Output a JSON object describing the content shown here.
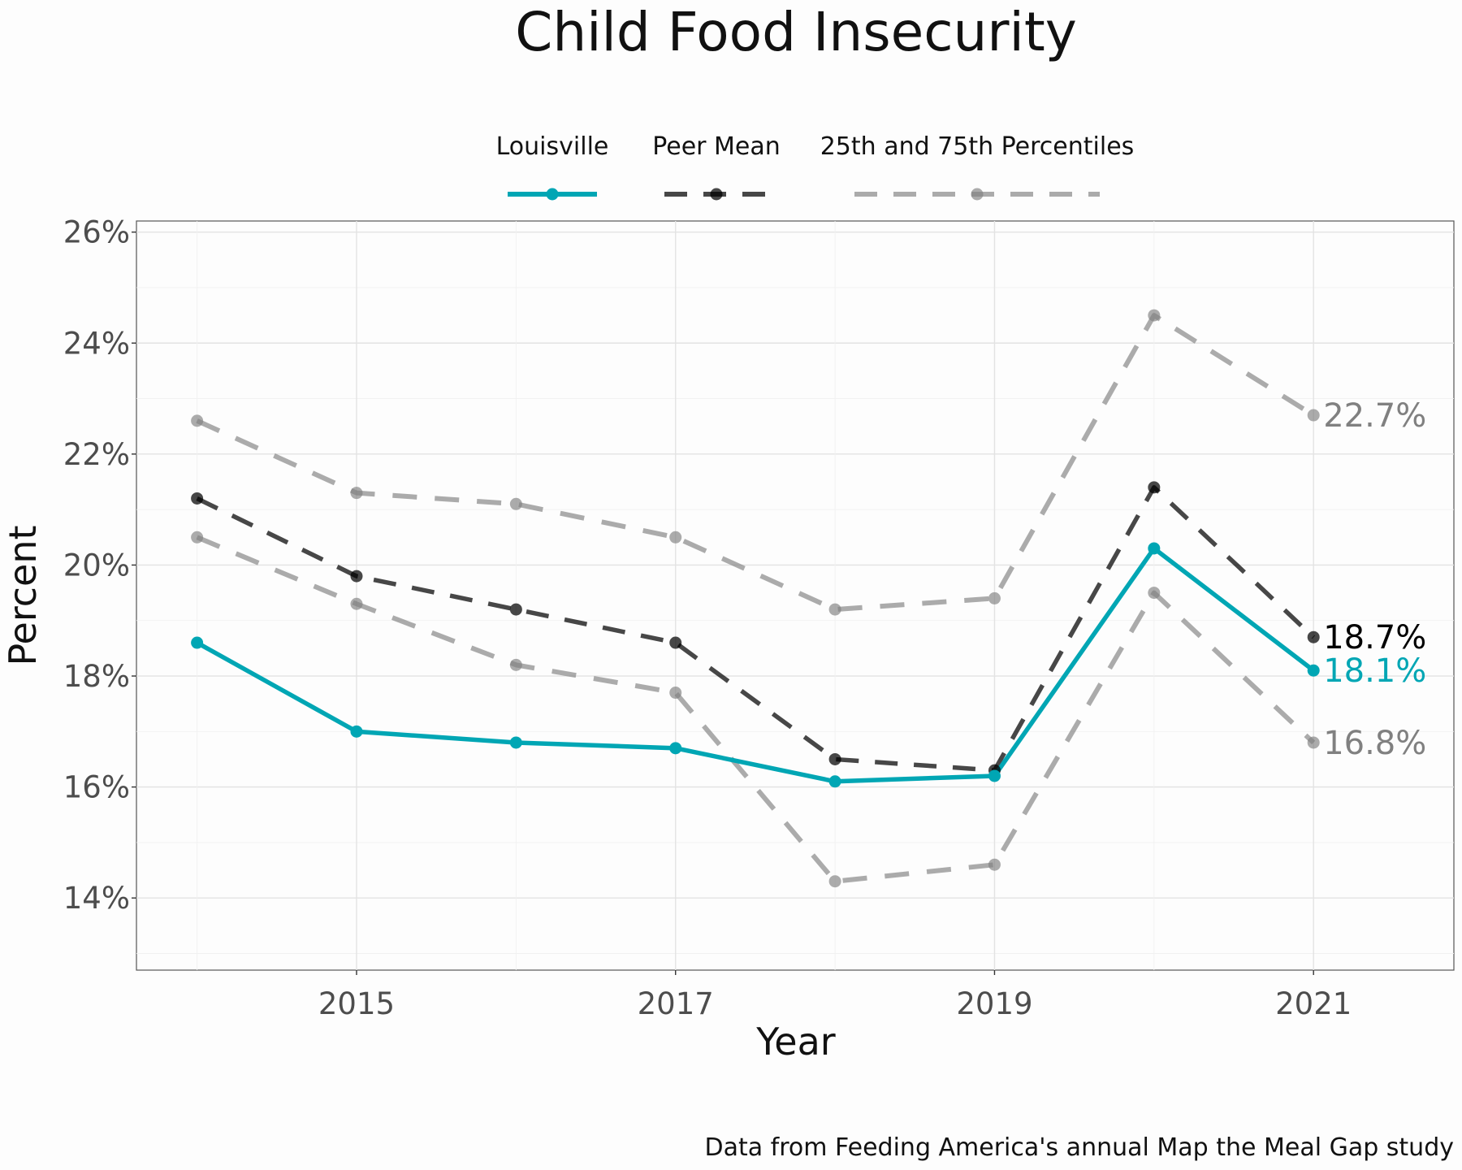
{
  "chart_data": {
    "type": "line",
    "title": "Child Food Insecurity",
    "xlabel": "Year",
    "ylabel": "Percent",
    "caption": "Data from Feeding America's annual Map the Meal Gap study",
    "x": [
      2014,
      2015,
      2016,
      2017,
      2018,
      2019,
      2020,
      2021
    ],
    "xlim": [
      2013.62,
      2021.88
    ],
    "ylim": [
      12.7,
      26.2
    ],
    "x_ticks": [
      2015,
      2017,
      2019,
      2021
    ],
    "x_tick_labels": [
      "2015",
      "2017",
      "2019",
      "2021"
    ],
    "y_ticks": [
      14,
      16,
      18,
      20,
      22,
      24,
      26
    ],
    "y_tick_labels": [
      "14%",
      "16%",
      "18%",
      "20%",
      "22%",
      "24%",
      "26%"
    ],
    "grid": true,
    "legend_position": "top",
    "legend": [
      {
        "label": "Louisville",
        "color": "#00a6b4",
        "style": "solid"
      },
      {
        "label": "Peer Mean",
        "color": "#000000",
        "style": "dashed"
      },
      {
        "label": "25th and 75th Percentiles",
        "color": "#808080",
        "style": "dashed"
      }
    ],
    "series": [
      {
        "name": "75th Percentile",
        "group": "25th and 75th Percentiles",
        "color": "#808080",
        "style": "dashed",
        "values": [
          22.6,
          21.3,
          21.1,
          20.5,
          19.2,
          19.4,
          24.5,
          22.7
        ],
        "end_label": "22.7%"
      },
      {
        "name": "25th Percentile",
        "group": "25th and 75th Percentiles",
        "color": "#808080",
        "style": "dashed",
        "values": [
          20.5,
          19.3,
          18.2,
          17.7,
          14.3,
          14.6,
          19.5,
          16.8
        ],
        "end_label": "16.8%"
      },
      {
        "name": "Peer Mean",
        "group": "Peer Mean",
        "color": "#000000",
        "style": "dashed",
        "values": [
          21.2,
          19.8,
          19.2,
          18.6,
          16.5,
          16.3,
          21.4,
          18.7
        ],
        "end_label": "18.7%"
      },
      {
        "name": "Louisville",
        "group": "Louisville",
        "color": "#00a6b4",
        "style": "solid",
        "values": [
          18.6,
          17.0,
          16.8,
          16.7,
          16.1,
          16.2,
          20.3,
          18.1
        ],
        "end_label": "18.1%"
      }
    ]
  }
}
